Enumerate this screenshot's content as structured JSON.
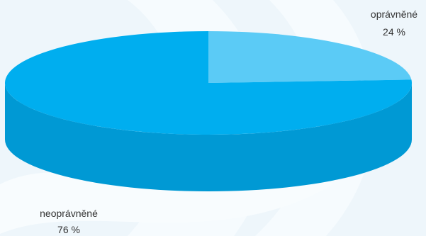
{
  "chart_data": {
    "type": "pie",
    "title": "",
    "labels": [
      "oprávněné",
      "neoprávněné"
    ],
    "values": [
      24,
      76
    ],
    "value_labels": [
      "24 %",
      "76 %"
    ],
    "colors": [
      "#5bcbf6",
      "#00aeef"
    ],
    "side_color": "#0099d4",
    "style": "3d",
    "legend": "none"
  }
}
